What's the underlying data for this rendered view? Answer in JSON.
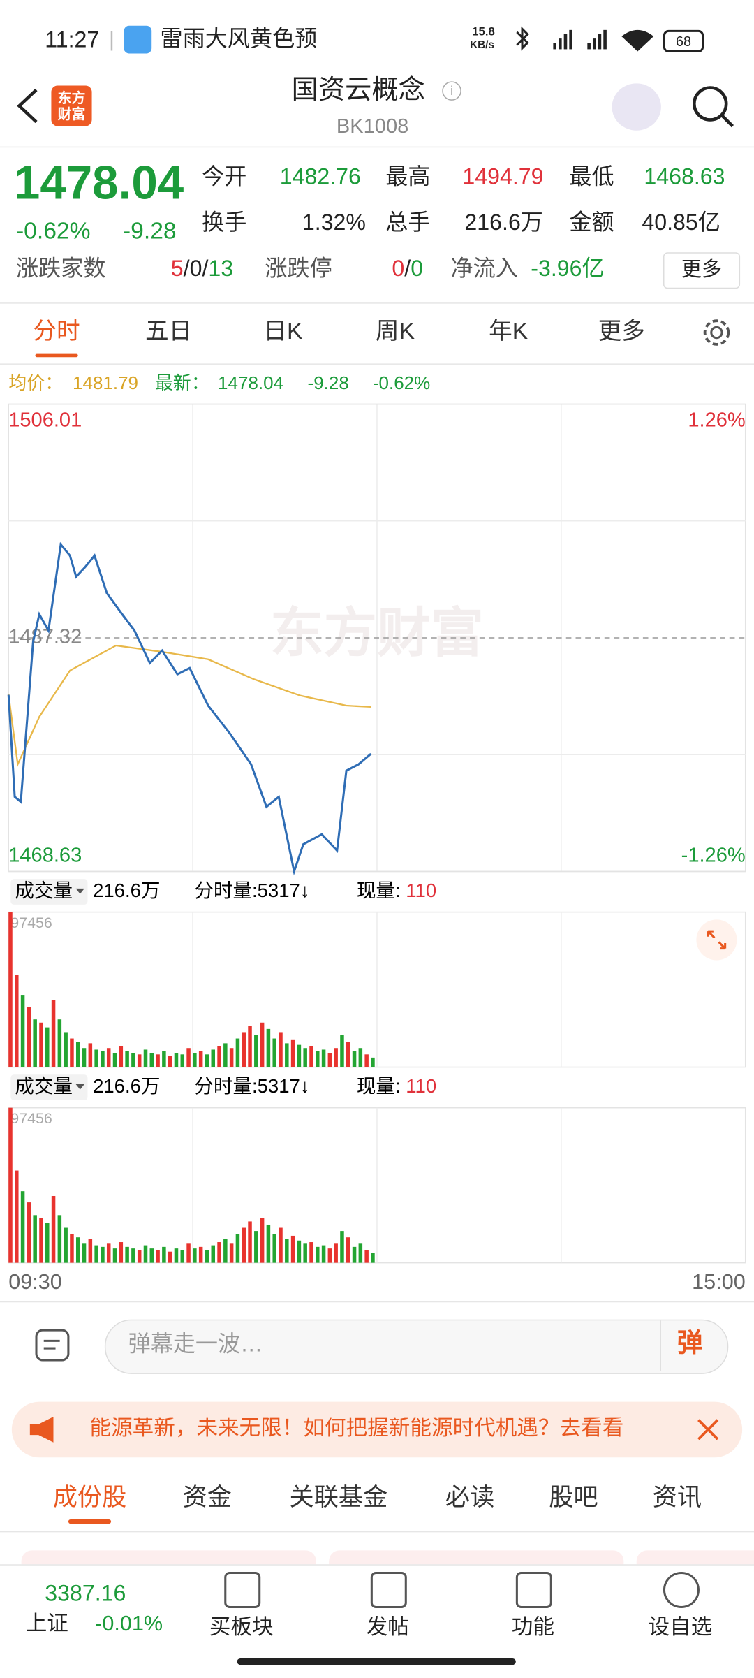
{
  "status_bar": {
    "time": "11:27",
    "notification": "雷雨大风黄色预",
    "net_speed": "15.8",
    "net_unit": "KB/s",
    "battery": "68"
  },
  "header": {
    "logo": [
      "东方",
      "财富"
    ],
    "title": "国资云概念",
    "code": "BK1008"
  },
  "quote": {
    "price": "1478.04",
    "change_pct": "-0.62%",
    "change": "-9.28",
    "fields": [
      {
        "label": "今开",
        "value": "1482.76"
      },
      {
        "label": "最高",
        "value": "1494.79"
      },
      {
        "label": "最低",
        "value": "1468.63"
      },
      {
        "label": "换手",
        "value": "1.32%"
      },
      {
        "label": "总手",
        "value": "216.6万"
      },
      {
        "label": "金额",
        "value": "40.85亿"
      }
    ],
    "breadth": {
      "label": "涨跌家数",
      "parts": [
        "5",
        "/",
        "0",
        "/",
        "13"
      ]
    },
    "limit": {
      "label": "涨跌停",
      "parts": [
        "0",
        "/",
        "0"
      ]
    },
    "net_inflow": {
      "label": "净流入",
      "value": "-3.96亿"
    },
    "more": "更多"
  },
  "tabs": {
    "items": [
      "分时",
      "五日",
      "日K",
      "周K",
      "年K",
      "更多"
    ],
    "active": 0
  },
  "intraday": {
    "type": "line",
    "series": [
      {
        "name": "均价：",
        "color": "#e8b84a",
        "last": "1481.79",
        "x": [
          0,
          3,
          10,
          20,
          35,
          50,
          65,
          80,
          95,
          110,
          118
        ],
        "values": [
          1482.8,
          1477.2,
          1481.0,
          1484.7,
          1486.7,
          1486.2,
          1485.6,
          1484.0,
          1482.7,
          1481.9,
          1481.79
        ]
      },
      {
        "name": "最新：",
        "color": "#2f6db5",
        "last": "1478.04",
        "change": "-9.28",
        "change_pct": "-0.62%",
        "x": [
          0,
          2,
          4,
          8,
          10,
          13,
          17,
          20,
          22,
          25,
          28,
          32,
          37,
          41,
          46,
          50,
          55,
          59,
          65,
          72,
          79,
          84,
          88,
          93,
          96,
          102,
          107,
          110,
          114,
          118
        ],
        "values": [
          1482.76,
          1474.6,
          1474.2,
          1487.0,
          1489.2,
          1487.9,
          1494.79,
          1493.9,
          1492.2,
          1493.0,
          1493.9,
          1490.9,
          1489.2,
          1487.9,
          1485.3,
          1486.3,
          1484.4,
          1484.9,
          1481.9,
          1479.7,
          1477.2,
          1473.8,
          1474.6,
          1468.63,
          1470.8,
          1471.6,
          1470.3,
          1476.7,
          1477.2,
          1478.04
        ]
      }
    ],
    "xlim": [
      0,
      240
    ],
    "xticks": [
      {
        "value": 0,
        "label": "09:30"
      },
      {
        "value": 240,
        "label": "15:00"
      }
    ],
    "ylim": [
      1468.63,
      1506.01
    ],
    "yticks": [
      1506.01,
      1487.32,
      1468.63
    ],
    "y2lim": [
      -1.26,
      1.26
    ],
    "y2ticks": [
      {
        "value": 1.26,
        "label": "1.26%"
      },
      {
        "value": -1.26,
        "label": "-1.26%"
      }
    ],
    "watermark": "东方财富"
  },
  "volume": {
    "type": "bar",
    "label": "成交量",
    "total": "216.6万",
    "minute_volume": "分时量:5317↓",
    "current_label": "现量:",
    "current": "110",
    "ylim": [
      0,
      97456
    ],
    "yticks": [
      97456
    ],
    "x": [
      0,
      2,
      4,
      6,
      8,
      10,
      12,
      14,
      16,
      18,
      20,
      22,
      24,
      26,
      28,
      30,
      32,
      34,
      36,
      38,
      40,
      42,
      44,
      46,
      48,
      50,
      52,
      54,
      56,
      58,
      60,
      62,
      64,
      66,
      68,
      70,
      72,
      74,
      76,
      78,
      80,
      82,
      84,
      86,
      88,
      90,
      92,
      94,
      96,
      98,
      100,
      102,
      104,
      106,
      108,
      110,
      112,
      114,
      116,
      118
    ],
    "values": [
      97456,
      58000,
      45000,
      38000,
      30000,
      28000,
      25000,
      42000,
      30000,
      22000,
      18000,
      16000,
      12000,
      15000,
      11000,
      10000,
      12000,
      9000,
      13000,
      10000,
      9000,
      8000,
      11000,
      9000,
      8000,
      10000,
      7000,
      9000,
      8000,
      12000,
      9000,
      10000,
      8000,
      11000,
      13000,
      15000,
      12000,
      18000,
      22000,
      26000,
      20000,
      28000,
      24000,
      18000,
      22000,
      15000,
      17000,
      14000,
      12000,
      13000,
      10000,
      11000,
      9000,
      12000,
      20000,
      16000,
      10000,
      12000,
      8000,
      6000
    ],
    "colors": [
      "#e8332e",
      "#e8332e",
      "#23a532",
      "#e8332e",
      "#23a532",
      "#e8332e",
      "#23a532",
      "#e8332e",
      "#23a532",
      "#23a532",
      "#e8332e",
      "#23a532",
      "#23a532",
      "#e8332e",
      "#23a532",
      "#23a532",
      "#e8332e",
      "#23a532",
      "#e8332e",
      "#23a532",
      "#23a532",
      "#e8332e",
      "#23a532",
      "#23a532",
      "#e8332e",
      "#23a532",
      "#e8332e",
      "#23a532",
      "#23a532",
      "#e8332e",
      "#23a532",
      "#e8332e",
      "#23a532",
      "#23a532",
      "#e8332e",
      "#23a532",
      "#e8332e",
      "#23a532",
      "#e8332e",
      "#e8332e",
      "#23a532",
      "#e8332e",
      "#23a532",
      "#23a532",
      "#e8332e",
      "#23a532",
      "#e8332e",
      "#23a532",
      "#23a532",
      "#e8332e",
      "#23a532",
      "#23a532",
      "#e8332e",
      "#e8332e",
      "#23a532",
      "#e8332e",
      "#23a532",
      "#23a532",
      "#e8332e",
      "#23a532"
    ]
  },
  "danmaku": {
    "placeholder": "弹幕走一波…",
    "button": "弹"
  },
  "banner": {
    "text": "能源革新，未来无限！如何把握新能源时代机遇？去看看"
  },
  "sections": {
    "items": [
      "成份股",
      "资金",
      "关联基金",
      "必读",
      "股吧",
      "资讯"
    ],
    "active": 0
  },
  "bottom_nav": {
    "index": {
      "value": "3387.16",
      "name": "上证",
      "change": "-0.01%"
    },
    "items": [
      "买板块",
      "发帖",
      "功能",
      "设自选"
    ]
  }
}
